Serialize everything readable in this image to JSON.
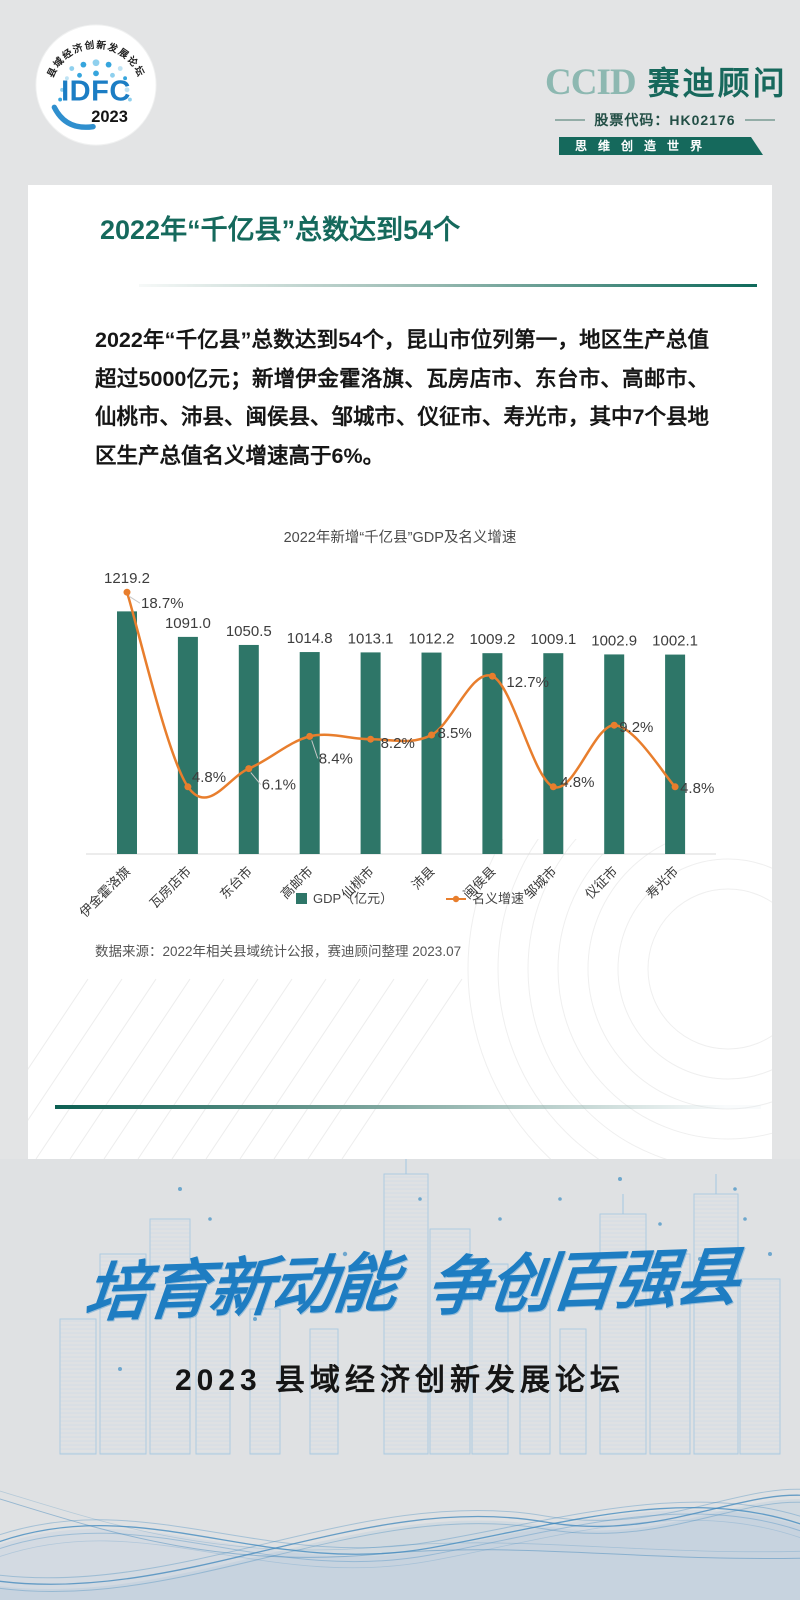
{
  "header": {
    "idfc_logo": {
      "ring_text": "县域经济创新发展论坛",
      "acronym": "IDFC",
      "year": "2023"
    },
    "ccid_logo": {
      "latin": "CCID",
      "name": "赛迪顾问",
      "stock_code": "股票代码：HK02176",
      "slogan": "思维创造世界"
    }
  },
  "card": {
    "title": "2022年“千亿县”总数达到54个",
    "paragraph": "2022年“千亿县”总数达到54个，昆山市位列第一，地区生产总值超过5000亿元；新增伊金霍洛旗、瓦房店市、东台市、高邮市、仙桃市、沛县、闽侯县、邹城市、仪征市、寿光市，其中7个县地区生产总值名义增速高于6%。",
    "source": "数据来源：2022年相关县域统计公报，赛迪顾问整理 2023.07"
  },
  "chart_data": {
    "type": "bar",
    "title": "2022年新增“千亿县”GDP及名义增速",
    "categories": [
      "伊金霍洛旗",
      "瓦房店市",
      "东台市",
      "高邮市",
      "仙桃市",
      "沛县",
      "闽侯县",
      "邹城市",
      "仪征市",
      "寿光市"
    ],
    "series": [
      {
        "name": "GDP（亿元）",
        "kind": "bar",
        "color": "#2e7668",
        "values": [
          1219.2,
          1091.0,
          1050.5,
          1014.8,
          1013.1,
          1012.2,
          1009.2,
          1009.1,
          1002.9,
          1002.1
        ]
      },
      {
        "name": "名义增速",
        "kind": "line",
        "color": "#e87e2d",
        "unit": "%",
        "values": [
          18.7,
          4.8,
          6.1,
          8.4,
          8.2,
          8.5,
          12.7,
          4.8,
          9.2,
          4.8
        ]
      }
    ],
    "legend": [
      "GDP（亿元）",
      "名义增速"
    ],
    "legend_position": "bottom",
    "grid": false,
    "bar_axis_range": [
      0,
      1250
    ],
    "line_axis_range": [
      0,
      21
    ]
  },
  "footer": {
    "slogan_left": "培育新动能",
    "slogan_right": "争创百强县",
    "subtitle": "2023 县域经济创新发展论坛"
  },
  "colors": {
    "brand_teal": "#15695c",
    "bar_green": "#2e7668",
    "line_orange": "#e87e2d",
    "slogan_blue": "#1e7dc2"
  }
}
